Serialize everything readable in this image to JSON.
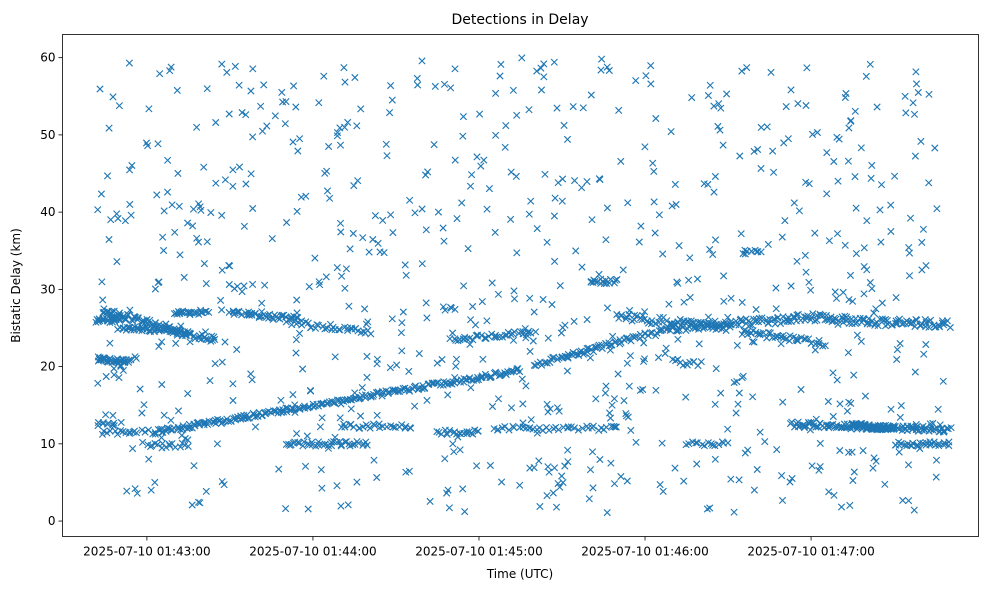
{
  "chart_data": {
    "type": "scatter",
    "title": "Detections in Delay",
    "xlabel": "Time (UTC)",
    "ylabel": "Bistatic Delay (km)",
    "marker": "x",
    "color": "#1f77b4",
    "xlim_seconds": [
      -30.5,
      300.5
    ],
    "ylim": [
      -2.0,
      63.0
    ],
    "x_ticks": [
      {
        "t": 0,
        "label": "2025-07-10 01:43:00"
      },
      {
        "t": 60,
        "label": "2025-07-10 01:44:00"
      },
      {
        "t": 120,
        "label": "2025-07-10 01:45:00"
      },
      {
        "t": 180,
        "label": "2025-07-10 01:46:00"
      },
      {
        "t": 240,
        "label": "2025-07-10 01:47:00"
      }
    ],
    "y_ticks": [
      0,
      10,
      20,
      30,
      40,
      50,
      60
    ],
    "x_units": "seconds since 2025-07-10 01:43:00 UTC",
    "seed": 20250710,
    "noise": {
      "count": 800,
      "t_range": [
        -18,
        288
      ],
      "y_range": [
        1,
        60
      ]
    },
    "tracks": [
      {
        "name": "track-a-low",
        "t": [
          -18,
          -6
        ],
        "y": [
          21,
          20.6
        ],
        "n": 40,
        "jitter": 0.3
      },
      {
        "name": "track-a-mid",
        "t": [
          -16,
          10
        ],
        "y": [
          27.2,
          24.8
        ],
        "n": 60,
        "jitter": 0.4
      },
      {
        "name": "track-a-26",
        "t": [
          -18,
          -10
        ],
        "y": [
          26,
          26
        ],
        "n": 25,
        "jitter": 0.3
      },
      {
        "name": "track-a-25",
        "t": [
          -10,
          15
        ],
        "y": [
          25,
          24.5
        ],
        "n": 50,
        "jitter": 0.3
      },
      {
        "name": "track-a-24",
        "t": [
          10,
          25
        ],
        "y": [
          24.5,
          23.5
        ],
        "n": 30,
        "jitter": 0.4
      },
      {
        "name": "track-a-27",
        "t": [
          10,
          22
        ],
        "y": [
          27,
          27
        ],
        "n": 25,
        "jitter": 0.3
      },
      {
        "name": "track-b",
        "t": [
          30,
          55
        ],
        "y": [
          27,
          26.2
        ],
        "n": 40,
        "jitter": 0.3
      },
      {
        "name": "track-c",
        "t": [
          50,
          80
        ],
        "y": [
          25.8,
          24.5
        ],
        "n": 35,
        "jitter": 0.4
      },
      {
        "name": "rising-track",
        "t": [
          2,
          135
        ],
        "y": [
          11.5,
          19.5
        ],
        "n": 230,
        "jitter": 0.3
      },
      {
        "name": "rising-track-2",
        "t": [
          140,
          190
        ],
        "y": [
          20.2,
          25
        ],
        "n": 75,
        "jitter": 0.35
      },
      {
        "name": "track-d",
        "t": [
          110,
          140
        ],
        "y": [
          23.5,
          24.5
        ],
        "n": 40,
        "jitter": 0.3
      },
      {
        "name": "track-e-31",
        "t": [
          160,
          170
        ],
        "y": [
          31,
          31
        ],
        "n": 15,
        "jitter": 0.3
      },
      {
        "name": "band-26",
        "t": [
          170,
          210
        ],
        "y": [
          26.5,
          25
        ],
        "n": 60,
        "jitter": 0.5
      },
      {
        "name": "band-25",
        "t": [
          190,
          245
        ],
        "y": [
          25,
          26.5
        ],
        "n": 90,
        "jitter": 0.5
      },
      {
        "name": "band-late",
        "t": [
          245,
          290
        ],
        "y": [
          26,
          25.5
        ],
        "n": 80,
        "jitter": 0.5
      },
      {
        "name": "track-f",
        "t": [
          215,
          245
        ],
        "y": [
          24.5,
          23
        ],
        "n": 40,
        "jitter": 0.4
      },
      {
        "name": "track-g",
        "t": [
          255,
          270
        ],
        "y": [
          12.5,
          12
        ],
        "n": 60,
        "jitter": 0.3
      },
      {
        "name": "track-h",
        "t": [
          233,
          290
        ],
        "y": [
          12.5,
          11.8
        ],
        "n": 120,
        "jitter": 0.35
      },
      {
        "name": "track-i",
        "t": [
          270,
          290
        ],
        "y": [
          10,
          10
        ],
        "n": 30,
        "jitter": 0.3
      },
      {
        "name": "track-j",
        "t": [
          50,
          80
        ],
        "y": [
          10,
          10
        ],
        "n": 40,
        "jitter": 0.3
      },
      {
        "name": "track-k",
        "t": [
          70,
          95
        ],
        "y": [
          12.3,
          12.3
        ],
        "n": 25,
        "jitter": 0.3
      },
      {
        "name": "track-l",
        "t": [
          105,
          120
        ],
        "y": [
          11.5,
          11.5
        ],
        "n": 20,
        "jitter": 0.3
      },
      {
        "name": "track-m",
        "t": [
          125,
          170
        ],
        "y": [
          12,
          12
        ],
        "n": 40,
        "jitter": 0.3
      },
      {
        "name": "track-n",
        "t": [
          -15,
          0
        ],
        "y": [
          11.5,
          11.5
        ],
        "n": 15,
        "jitter": 0.3
      },
      {
        "name": "track-o",
        "t": [
          0,
          15
        ],
        "y": [
          9.8,
          9.8
        ],
        "n": 15,
        "jitter": 0.3
      },
      {
        "name": "track-p",
        "t": [
          195,
          210
        ],
        "y": [
          10,
          10
        ],
        "n": 15,
        "jitter": 0.3
      },
      {
        "name": "track-q",
        "t": [
          -18,
          -12
        ],
        "y": [
          12.5,
          12.5
        ],
        "n": 8,
        "jitter": 0.3
      },
      {
        "name": "track-r",
        "t": [
          190,
          200
        ],
        "y": [
          20.5,
          20.5
        ],
        "n": 12,
        "jitter": 0.5
      },
      {
        "name": "track-s",
        "t": [
          215,
          222
        ],
        "y": [
          34.8,
          34.8
        ],
        "n": 10,
        "jitter": 0.3
      }
    ]
  }
}
